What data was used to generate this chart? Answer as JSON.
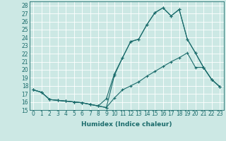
{
  "xlabel": "Humidex (Indice chaleur)",
  "xlim": [
    -0.5,
    23.5
  ],
  "ylim": [
    15,
    28.5
  ],
  "yticks": [
    15,
    16,
    17,
    18,
    19,
    20,
    21,
    22,
    23,
    24,
    25,
    26,
    27,
    28
  ],
  "xticks": [
    0,
    1,
    2,
    3,
    4,
    5,
    6,
    7,
    8,
    9,
    10,
    11,
    12,
    13,
    14,
    15,
    16,
    17,
    18,
    19,
    20,
    21,
    22,
    23
  ],
  "bg_color": "#cce8e4",
  "grid_color": "#ffffff",
  "line_color": "#1a6b6b",
  "series1_x": [
    0,
    1,
    2,
    3,
    4,
    5,
    6,
    7,
    8,
    9,
    10,
    11,
    12,
    13,
    14,
    15,
    16,
    17,
    18,
    19,
    20,
    21,
    22,
    23
  ],
  "series1_y": [
    17.5,
    17.2,
    16.3,
    16.2,
    16.1,
    16.0,
    15.9,
    15.7,
    15.5,
    15.3,
    19.3,
    21.5,
    23.5,
    23.8,
    25.6,
    27.1,
    27.7,
    26.7,
    27.5,
    23.8,
    22.1,
    20.3,
    18.8,
    17.9
  ],
  "series2_x": [
    0,
    1,
    2,
    3,
    4,
    5,
    6,
    7,
    8,
    9,
    10,
    11,
    12,
    13,
    14,
    15,
    16,
    17,
    18,
    19,
    20,
    21,
    22,
    23
  ],
  "series2_y": [
    17.5,
    17.2,
    16.3,
    16.2,
    16.1,
    16.0,
    15.9,
    15.7,
    15.5,
    16.4,
    19.5,
    21.5,
    23.5,
    23.8,
    25.6,
    27.1,
    27.7,
    26.7,
    27.5,
    23.8,
    22.1,
    20.3,
    18.8,
    17.9
  ],
  "series3_x": [
    0,
    1,
    2,
    3,
    4,
    5,
    6,
    7,
    8,
    9,
    10,
    11,
    12,
    13,
    14,
    15,
    16,
    17,
    18,
    19,
    20,
    21,
    22,
    23
  ],
  "series3_y": [
    17.5,
    17.2,
    16.3,
    16.2,
    16.1,
    16.0,
    15.9,
    15.7,
    15.5,
    15.3,
    16.5,
    17.5,
    18.0,
    18.5,
    19.2,
    19.8,
    20.4,
    21.0,
    21.5,
    22.1,
    20.3,
    20.3,
    18.8,
    17.9
  ],
  "tick_fontsize": 5.5,
  "xlabel_fontsize": 6.5
}
